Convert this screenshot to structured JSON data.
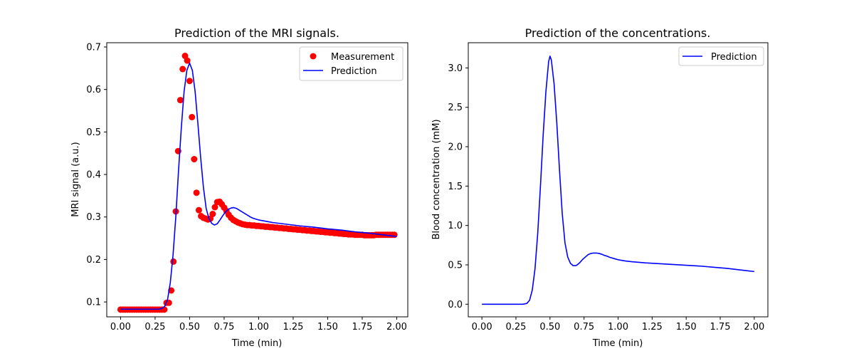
{
  "chart_data": [
    {
      "type": "line",
      "title": "Prediction of the MRI signals.",
      "xlabel": "Time (min)",
      "ylabel": "MRI signal (a.u.)",
      "xlim": [
        -0.1,
        2.08
      ],
      "ylim": [
        0.065,
        0.71
      ],
      "xticks": [
        "0.00",
        "0.25",
        "0.50",
        "0.75",
        "1.00",
        "1.25",
        "1.50",
        "1.75",
        "2.00"
      ],
      "yticks": [
        "0.1",
        "0.2",
        "0.3",
        "0.4",
        "0.5",
        "0.6",
        "0.7"
      ],
      "legend_position": "top-right",
      "grid": false,
      "series": [
        {
          "name": "Measurement",
          "kind": "scatter",
          "color": "#ff0000",
          "x": [
            0.0,
            0.017,
            0.033,
            0.05,
            0.067,
            0.083,
            0.1,
            0.117,
            0.133,
            0.15,
            0.167,
            0.183,
            0.2,
            0.217,
            0.233,
            0.25,
            0.267,
            0.283,
            0.3,
            0.317,
            0.333,
            0.35,
            0.367,
            0.383,
            0.4,
            0.417,
            0.433,
            0.45,
            0.467,
            0.483,
            0.5,
            0.517,
            0.533,
            0.55,
            0.567,
            0.583,
            0.6,
            0.617,
            0.633,
            0.65,
            0.667,
            0.683,
            0.7,
            0.717,
            0.733,
            0.75,
            0.767,
            0.783,
            0.8,
            0.817,
            0.833,
            0.85,
            0.867,
            0.883,
            0.9,
            0.917,
            0.933,
            0.95,
            0.967,
            0.983,
            1.0,
            1.017,
            1.033,
            1.05,
            1.067,
            1.083,
            1.1,
            1.117,
            1.133,
            1.15,
            1.167,
            1.183,
            1.2,
            1.217,
            1.233,
            1.25,
            1.267,
            1.283,
            1.3,
            1.317,
            1.333,
            1.35,
            1.367,
            1.383,
            1.4,
            1.417,
            1.433,
            1.45,
            1.467,
            1.483,
            1.5,
            1.517,
            1.533,
            1.55,
            1.567,
            1.583,
            1.6,
            1.617,
            1.633,
            1.65,
            1.667,
            1.683,
            1.7,
            1.717,
            1.733,
            1.75,
            1.767,
            1.783,
            1.8,
            1.817,
            1.833,
            1.85,
            1.867,
            1.883,
            1.9,
            1.917,
            1.933,
            1.95,
            1.967,
            1.983
          ],
          "y": [
            0.082,
            0.082,
            0.082,
            0.082,
            0.082,
            0.082,
            0.082,
            0.082,
            0.082,
            0.082,
            0.082,
            0.082,
            0.082,
            0.082,
            0.082,
            0.082,
            0.082,
            0.082,
            0.082,
            0.082,
            0.098,
            0.098,
            0.127,
            0.195,
            0.313,
            0.455,
            0.575,
            0.648,
            0.679,
            0.668,
            0.62,
            0.535,
            0.436,
            0.357,
            0.316,
            0.302,
            0.298,
            0.296,
            0.294,
            0.296,
            0.307,
            0.323,
            0.335,
            0.336,
            0.33,
            0.322,
            0.314,
            0.305,
            0.298,
            0.293,
            0.29,
            0.287,
            0.285,
            0.283,
            0.282,
            0.281,
            0.281,
            0.28,
            0.28,
            0.279,
            0.279,
            0.278,
            0.278,
            0.277,
            0.277,
            0.276,
            0.276,
            0.275,
            0.275,
            0.274,
            0.274,
            0.273,
            0.273,
            0.272,
            0.272,
            0.271,
            0.271,
            0.27,
            0.27,
            0.269,
            0.269,
            0.268,
            0.268,
            0.267,
            0.267,
            0.266,
            0.266,
            0.265,
            0.265,
            0.264,
            0.264,
            0.263,
            0.263,
            0.262,
            0.262,
            0.261,
            0.261,
            0.26,
            0.26,
            0.259,
            0.259,
            0.259,
            0.258,
            0.258,
            0.258,
            0.258,
            0.257,
            0.257,
            0.257,
            0.257,
            0.257,
            0.258,
            0.258,
            0.258,
            0.258,
            0.258,
            0.258,
            0.258,
            0.258,
            0.258
          ]
        },
        {
          "name": "Prediction",
          "kind": "line",
          "color": "#0000ff",
          "x": [
            0.0,
            0.05,
            0.1,
            0.15,
            0.2,
            0.25,
            0.28,
            0.3,
            0.32,
            0.34,
            0.36,
            0.38,
            0.4,
            0.42,
            0.44,
            0.46,
            0.48,
            0.5,
            0.52,
            0.54,
            0.56,
            0.58,
            0.6,
            0.62,
            0.64,
            0.66,
            0.68,
            0.7,
            0.72,
            0.74,
            0.76,
            0.78,
            0.8,
            0.82,
            0.84,
            0.86,
            0.88,
            0.9,
            0.92,
            0.94,
            0.96,
            0.98,
            1.0,
            1.05,
            1.1,
            1.2,
            1.3,
            1.4,
            1.5,
            1.6,
            1.7,
            1.8,
            1.9,
            2.0
          ],
          "y": [
            0.083,
            0.083,
            0.083,
            0.083,
            0.083,
            0.083,
            0.083,
            0.085,
            0.09,
            0.105,
            0.145,
            0.21,
            0.3,
            0.41,
            0.51,
            0.595,
            0.645,
            0.662,
            0.645,
            0.595,
            0.52,
            0.44,
            0.37,
            0.32,
            0.296,
            0.285,
            0.281,
            0.284,
            0.293,
            0.303,
            0.312,
            0.318,
            0.321,
            0.322,
            0.32,
            0.316,
            0.312,
            0.308,
            0.304,
            0.3,
            0.297,
            0.295,
            0.293,
            0.29,
            0.287,
            0.283,
            0.279,
            0.276,
            0.272,
            0.269,
            0.265,
            0.262,
            0.258,
            0.254
          ]
        }
      ]
    },
    {
      "type": "line",
      "title": "Prediction of the concentrations.",
      "xlabel": "Time (min)",
      "ylabel": "Blood concentration (mM)",
      "xlim": [
        -0.1,
        2.1
      ],
      "ylim": [
        -0.16,
        3.32
      ],
      "xticks": [
        "0.00",
        "0.25",
        "0.50",
        "0.75",
        "1.00",
        "1.25",
        "1.50",
        "1.75",
        "2.00"
      ],
      "yticks": [
        "0.0",
        "0.5",
        "1.0",
        "1.5",
        "2.0",
        "2.5",
        "3.0"
      ],
      "legend_position": "top-right",
      "grid": false,
      "series": [
        {
          "name": "Prediction",
          "kind": "line",
          "color": "#0000ff",
          "x": [
            0.0,
            0.1,
            0.2,
            0.3,
            0.33,
            0.35,
            0.37,
            0.39,
            0.41,
            0.43,
            0.45,
            0.47,
            0.49,
            0.5,
            0.51,
            0.53,
            0.55,
            0.57,
            0.59,
            0.61,
            0.63,
            0.65,
            0.67,
            0.69,
            0.7,
            0.72,
            0.74,
            0.76,
            0.78,
            0.8,
            0.82,
            0.84,
            0.86,
            0.88,
            0.9,
            0.92,
            0.94,
            0.96,
            0.98,
            1.0,
            1.05,
            1.1,
            1.2,
            1.3,
            1.4,
            1.5,
            1.6,
            1.7,
            1.8,
            1.9,
            2.0
          ],
          "y": [
            0.0,
            0.0,
            0.0,
            0.0,
            0.01,
            0.05,
            0.18,
            0.45,
            0.9,
            1.5,
            2.15,
            2.7,
            3.08,
            3.15,
            3.1,
            2.8,
            2.3,
            1.7,
            1.15,
            0.78,
            0.6,
            0.52,
            0.49,
            0.49,
            0.5,
            0.53,
            0.57,
            0.6,
            0.63,
            0.645,
            0.65,
            0.65,
            0.645,
            0.635,
            0.62,
            0.61,
            0.595,
            0.585,
            0.575,
            0.565,
            0.55,
            0.54,
            0.525,
            0.515,
            0.505,
            0.495,
            0.485,
            0.47,
            0.455,
            0.435,
            0.415
          ]
        }
      ]
    }
  ]
}
